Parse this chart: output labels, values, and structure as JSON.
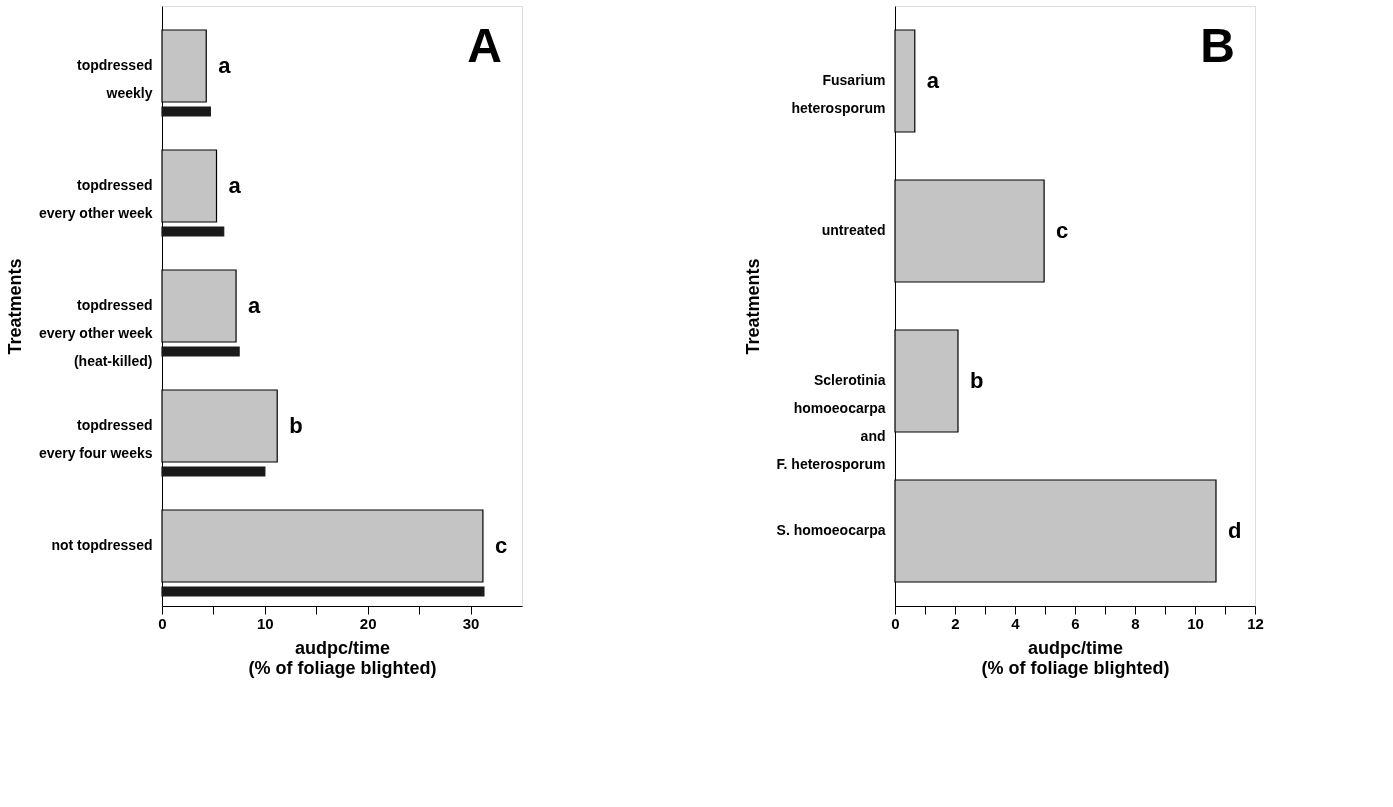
{
  "chart_data": [
    {
      "type": "bar",
      "orientation": "horizontal",
      "ylabel": "Treatments",
      "xlabel": "audpc/time\n(% of foliage blighted)",
      "annotations": [
        "A"
      ],
      "categories": [
        "topdressed\nweekly",
        "topdressed\nevery other week",
        "topdressed\nevery other week\n(heat-killed)",
        "topdressed\nevery four weeks",
        "not topdressed"
      ],
      "series": [
        {
          "color": "#c4c4c4",
          "values": [
            4.3,
            5.3,
            7.2,
            11.2,
            31.2
          ],
          "value_labels": [
            "a",
            "a",
            "a",
            "b",
            "c"
          ]
        },
        {
          "color": "#1a1a1a",
          "values": [
            4.7,
            6.0,
            7.5,
            10.0,
            31.3
          ]
        }
      ],
      "xlim": [
        0,
        35
      ],
      "xticks": [
        0,
        {
          "value": 5,
          "label": null
        },
        10,
        {
          "value": 15,
          "label": null
        },
        20,
        {
          "value": 25,
          "label": null
        },
        30
      ],
      "grid": false,
      "legend": false
    },
    {
      "type": "bar",
      "orientation": "horizontal",
      "ylabel": "Treatments",
      "xlabel": "audpc/time\n(% of foliage blighted)",
      "annotations": [
        "B"
      ],
      "categories": [
        "Fusarium\nheterosporum",
        "untreated",
        "Sclerotinia\nhomoeocarpa\nand\nF. heterosporum",
        "S. homoeocarpa"
      ],
      "series": [
        {
          "color": "#c4c4c4",
          "values": [
            0.66,
            4.97,
            2.1,
            10.7
          ],
          "value_labels": [
            "a",
            "c",
            "b",
            "d"
          ]
        }
      ],
      "xlim": [
        0,
        12
      ],
      "xticks": [
        0,
        {
          "value": 1,
          "label": null
        },
        2,
        {
          "value": 3,
          "label": null
        },
        4,
        {
          "value": 5,
          "label": null
        },
        6,
        {
          "value": 7,
          "label": null
        },
        8,
        {
          "value": 9,
          "label": null
        },
        10,
        {
          "value": 11,
          "label": null
        },
        12
      ],
      "grid": false,
      "legend": false
    }
  ]
}
